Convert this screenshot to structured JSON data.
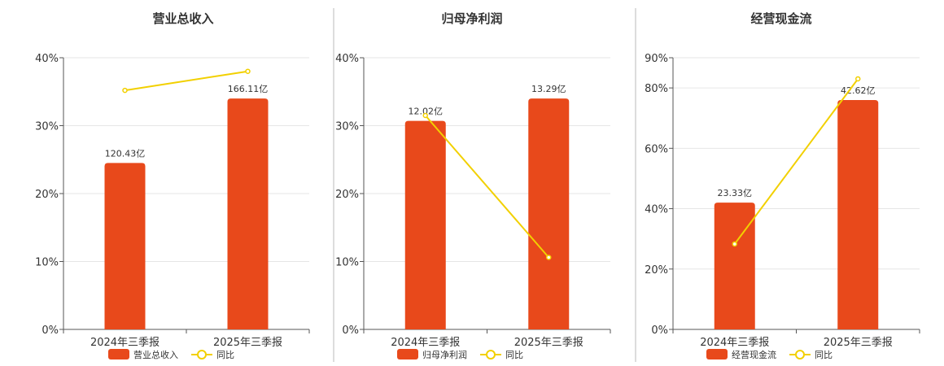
{
  "colors": {
    "bar": "#E8491B",
    "line": "#F2D000",
    "grid": "#E6E6E6",
    "axis": "#555555",
    "divider": "#BBBBBB"
  },
  "chart_data": [
    {
      "type": "bar",
      "title": "营业总收入",
      "categories": [
        "2024年三季报",
        "2025年三季报"
      ],
      "ylim": [
        0,
        40
      ],
      "yticks": [
        "0%",
        "10%",
        "20%",
        "30%",
        "40%"
      ],
      "ytick_values": [
        0,
        10,
        20,
        30,
        40
      ],
      "grid": true,
      "legend_position": "bottom",
      "series": [
        {
          "name": "营业总收入",
          "kind": "bar",
          "values": [
            24.5,
            34.0
          ],
          "labels": [
            "120.43亿",
            "166.11亿"
          ]
        },
        {
          "name": "同比",
          "kind": "line",
          "values": [
            35.2,
            38.0
          ]
        }
      ]
    },
    {
      "type": "bar",
      "title": "归母净利润",
      "categories": [
        "2024年三季报",
        "2025年三季报"
      ],
      "ylim": [
        0,
        40
      ],
      "yticks": [
        "0%",
        "10%",
        "20%",
        "30%",
        "40%"
      ],
      "ytick_values": [
        0,
        10,
        20,
        30,
        40
      ],
      "grid": true,
      "legend_position": "bottom",
      "series": [
        {
          "name": "归母净利润",
          "kind": "bar",
          "values": [
            30.7,
            34.0
          ],
          "labels": [
            "12.02亿",
            "13.29亿"
          ]
        },
        {
          "name": "同比",
          "kind": "line",
          "values": [
            31.5,
            10.6
          ]
        }
      ]
    },
    {
      "type": "bar",
      "title": "经营现金流",
      "categories": [
        "2024年三季报",
        "2025年三季报"
      ],
      "ylim": [
        0,
        90
      ],
      "yticks": [
        "0%",
        "20%",
        "40%",
        "60%",
        "80%",
        "90%"
      ],
      "ytick_values": [
        0,
        20,
        40,
        60,
        80,
        90
      ],
      "grid": true,
      "legend_position": "bottom",
      "series": [
        {
          "name": "经营现金流",
          "kind": "bar",
          "values": [
            42.0,
            76.0
          ],
          "labels": [
            "23.33亿",
            "42.62亿"
          ]
        },
        {
          "name": "同比",
          "kind": "line",
          "values": [
            28.3,
            83.0
          ]
        }
      ]
    }
  ]
}
